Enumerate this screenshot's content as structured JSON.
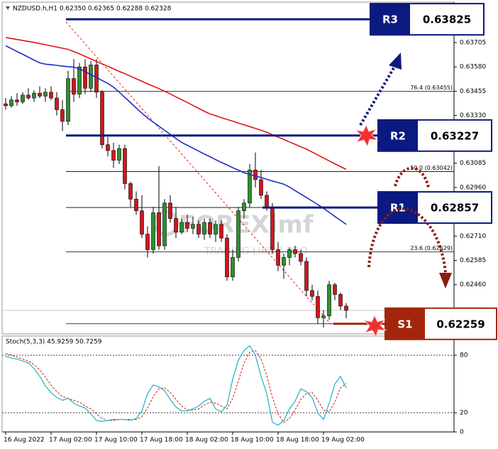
{
  "chart_data": {
    "type": "candlestick",
    "header": "NZDUSD.h,H1  0.62350 0.62365 0.62288 0.62328",
    "categories": [
      "16 Aug 2022",
      null,
      null,
      null,
      null,
      null,
      null,
      null,
      "17 Aug 02:00",
      null,
      null,
      null,
      null,
      null,
      null,
      null,
      "17 Aug 10:00",
      null,
      null,
      null,
      null,
      null,
      null,
      null,
      "17 Aug 18:00",
      null,
      null,
      null,
      null,
      null,
      null,
      null,
      "18 Aug 02:00",
      null,
      null,
      null,
      null,
      null,
      null,
      null,
      "18 Aug 10:00",
      null,
      null,
      null,
      null,
      null,
      null,
      null,
      "18 Aug 18:00",
      null,
      null,
      null,
      null,
      null,
      null,
      null,
      "19 Aug 02:00",
      null,
      null,
      null,
      null
    ],
    "open": [
      0.6339,
      0.6338,
      0.6341,
      0.634,
      0.63435,
      0.6342,
      0.63445,
      0.6343,
      0.6345,
      0.6342,
      0.6336,
      0.633,
      0.6352,
      0.6344,
      0.6358,
      0.6347,
      0.6359,
      0.6345,
      0.6318,
      0.6315,
      0.631,
      0.6316,
      0.6298,
      0.629,
      0.6284,
      0.6272,
      0.6264,
      0.6283,
      0.6266,
      0.6288,
      0.628,
      0.6273,
      0.6278,
      0.6275,
      0.6277,
      0.6272,
      0.6278,
      0.6272,
      0.6277,
      0.627,
      0.625,
      0.626,
      0.6284,
      0.6288,
      0.6305,
      0.63,
      0.6292,
      0.6286,
      0.6264,
      0.6256,
      0.626,
      0.6264,
      0.6262,
      0.6258,
      0.6243,
      0.624,
      0.6229,
      0.623,
      0.6246,
      0.6241,
      0.6235
    ],
    "high": [
      0.6342,
      0.6343,
      0.63445,
      0.6345,
      0.6347,
      0.6346,
      0.6348,
      0.6347,
      0.6348,
      0.6345,
      0.6341,
      0.6356,
      0.6362,
      0.636,
      0.6362,
      0.6361,
      0.6362,
      0.6346,
      0.6322,
      0.6319,
      0.6318,
      0.6318,
      0.6299,
      0.6294,
      0.6292,
      0.6276,
      0.6286,
      0.6307,
      0.629,
      0.6292,
      0.6286,
      0.628,
      0.6282,
      0.6281,
      0.6279,
      0.628,
      0.628,
      0.6279,
      0.6279,
      0.6272,
      0.6264,
      0.6286,
      0.629,
      0.6308,
      0.6314,
      0.6305,
      0.6294,
      0.6288,
      0.6268,
      0.6262,
      0.6265,
      0.6266,
      0.6264,
      0.626,
      0.6246,
      0.6243,
      0.6233,
      0.6248,
      0.6247,
      0.6242,
      0.62365
    ],
    "low": [
      0.6336,
      0.6337,
      0.6338,
      0.6339,
      0.6341,
      0.634,
      0.6342,
      0.634,
      0.6341,
      0.6333,
      0.6325,
      0.6328,
      0.634,
      0.6342,
      0.6344,
      0.6345,
      0.6342,
      0.6316,
      0.6312,
      0.6306,
      0.6308,
      0.6295,
      0.6286,
      0.6282,
      0.627,
      0.626,
      0.6262,
      0.6264,
      0.6264,
      0.6278,
      0.627,
      0.6272,
      0.6273,
      0.6272,
      0.627,
      0.6269,
      0.627,
      0.6268,
      0.6268,
      0.6248,
      0.6248,
      0.6258,
      0.628,
      0.6286,
      0.6296,
      0.629,
      0.6284,
      0.6262,
      0.6253,
      0.6249,
      0.6256,
      0.626,
      0.6256,
      0.624,
      0.6238,
      0.6226,
      0.6224,
      0.6228,
      0.6238,
      0.6233,
      0.62288
    ],
    "close": [
      0.6338,
      0.6341,
      0.634,
      0.63435,
      0.6342,
      0.63445,
      0.6343,
      0.6345,
      0.6342,
      0.6336,
      0.633,
      0.6352,
      0.6344,
      0.6358,
      0.6347,
      0.6359,
      0.6345,
      0.6318,
      0.6315,
      0.631,
      0.6316,
      0.6298,
      0.629,
      0.6284,
      0.6272,
      0.6264,
      0.6283,
      0.6266,
      0.6288,
      0.628,
      0.6273,
      0.6278,
      0.6275,
      0.6277,
      0.6272,
      0.6278,
      0.6272,
      0.6277,
      0.627,
      0.625,
      0.626,
      0.6284,
      0.6288,
      0.6305,
      0.63,
      0.6292,
      0.6286,
      0.6264,
      0.6256,
      0.626,
      0.6264,
      0.6262,
      0.6258,
      0.6243,
      0.624,
      0.6229,
      0.623,
      0.6246,
      0.6241,
      0.6235,
      0.62328
    ],
    "up_color": "#2f8f2f",
    "down_color": "#d2161c",
    "ylim": [
      0.62207,
      0.63913
    ],
    "yticks": [
      0.63705,
      {
        "value": 0.6358,
        "label": "0.63580"
      },
      0.63455,
      {
        "value": 0.6333,
        "label": "0.63330"
      },
      0.63085,
      {
        "value": 0.6296,
        "label": "0.62960"
      },
      {
        "value": 0.6271,
        "label": "0.62710"
      },
      0.62585,
      {
        "value": 0.6246,
        "label": "0.62460"
      }
    ],
    "moving_averages": [
      {
        "color": "#e01515",
        "values": [
          0.63731,
          0.63726,
          0.63721,
          0.63716,
          0.63711,
          0.63706,
          0.637,
          0.63694,
          0.63688,
          0.63682,
          0.63676,
          0.6367,
          0.63659,
          0.63647,
          0.63634,
          0.63621,
          0.63608,
          0.63595,
          0.63583,
          0.6357,
          0.63557,
          0.63545,
          0.63532,
          0.63519,
          0.63506,
          0.63493,
          0.63481,
          0.63468,
          0.63455,
          0.63441,
          0.63426,
          0.63411,
          0.63397,
          0.63382,
          0.63367,
          0.63352,
          0.63338,
          0.63329,
          0.63319,
          0.6331,
          0.63301,
          0.63291,
          0.63282,
          0.63273,
          0.63264,
          0.63254,
          0.63244,
          0.63231,
          0.63219,
          0.63207,
          0.63194,
          0.63182,
          0.63169,
          0.63157,
          0.63142,
          0.63127,
          0.63112,
          0.63097,
          0.63082,
          0.63067,
          0.63053
        ]
      },
      {
        "color": "#1c2cc4",
        "values": [
          0.63689,
          0.63674,
          0.63659,
          0.63645,
          0.6363,
          0.63615,
          0.63601,
          0.63594,
          0.63591,
          0.63588,
          0.63584,
          0.63581,
          0.63579,
          0.6357,
          0.63555,
          0.6354,
          0.63525,
          0.6351,
          0.63495,
          0.63476,
          0.6345,
          0.63423,
          0.63396,
          0.63369,
          0.63342,
          0.63317,
          0.63296,
          0.63275,
          0.63254,
          0.63233,
          0.63212,
          0.63192,
          0.63177,
          0.63162,
          0.63147,
          0.63132,
          0.63118,
          0.63103,
          0.63089,
          0.63076,
          0.63062,
          0.63049,
          0.63036,
          0.63027,
          0.63019,
          0.63011,
          0.63002,
          0.62993,
          0.62985,
          0.62977,
          0.62962,
          0.62944,
          0.62926,
          0.62908,
          0.6289,
          0.62872,
          0.62853,
          0.62832,
          0.62811,
          0.62791,
          0.6277
        ]
      }
    ],
    "fib_levels": [
      {
        "value": 0.63455,
        "label": "76.4 (0.63455)"
      },
      {
        "value": 0.63042,
        "label": "50.0 (0.63042)"
      },
      {
        "value": 0.62629,
        "label": "23.6 (0.62629)"
      }
    ],
    "pivots": [
      {
        "name": "R3",
        "value": 0.63825,
        "color": "#0b1a80"
      },
      {
        "name": "R2",
        "value": 0.63227,
        "color": "#0b1a80"
      },
      {
        "name": "R1",
        "value": 0.62857,
        "color": "#0b1a80"
      },
      {
        "name": "S1",
        "value": 0.62259,
        "color": "#a3260c"
      }
    ],
    "watermark": {
      "brand": "FOREXimf",
      "tagline": "TRADING LIKE A PRO"
    },
    "stochastic": {
      "label": "Stoch(5,3,3) 45.9259 50.7259",
      "ylim": [
        0,
        100
      ],
      "yticks": [
        80,
        20,
        0
      ],
      "main": {
        "color": "#1fb3c4",
        "values": [
          79,
          77,
          76,
          74,
          72,
          66,
          58,
          48,
          41,
          36,
          33,
          35,
          30,
          27,
          25,
          19,
          12,
          11,
          12,
          13,
          13,
          13,
          12,
          14,
          22,
          40,
          49,
          47,
          43,
          34,
          26,
          22,
          22,
          24,
          27,
          32,
          35,
          24,
          21,
          28,
          55,
          75,
          85,
          90,
          80,
          58,
          40,
          10,
          7,
          12,
          24,
          32,
          45,
          42,
          36,
          20,
          13,
          30,
          50,
          58,
          45.9259
        ]
      },
      "signal": {
        "color": "#e01515",
        "values": [
          82,
          80,
          78,
          76,
          74,
          70,
          65,
          57,
          49,
          42,
          37,
          35,
          33,
          31,
          27,
          24,
          19,
          14,
          12,
          12,
          13,
          13,
          13,
          13,
          16,
          25,
          37,
          45,
          46,
          41,
          34,
          27,
          23,
          23,
          24,
          28,
          31,
          30,
          27,
          24,
          35,
          53,
          72,
          83,
          85,
          76,
          59,
          36,
          19,
          10,
          14,
          23,
          34,
          40,
          41,
          33,
          23,
          21,
          31,
          46,
          50.7259
        ]
      }
    }
  }
}
